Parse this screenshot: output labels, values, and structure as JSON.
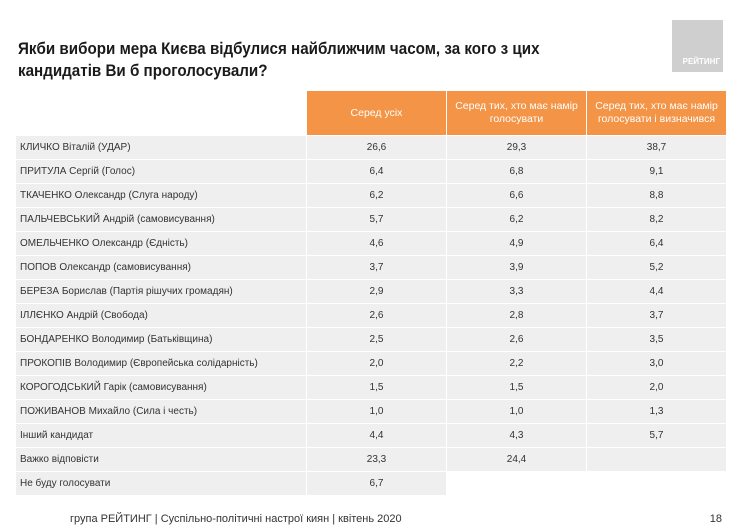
{
  "title": "Якби вибори мера Києва відбулися найближчим часом, за кого з цих кандидатів Ви б проголосували?",
  "logo_text": "РЕЙТИНГ",
  "colors": {
    "header": "#f39447",
    "row": "#efefef",
    "logo": "#cfcfcf"
  },
  "columns": [
    "Серед усіх",
    "Серед тих, хто має намір голосувати",
    "Серед тих, хто має намір голосувати і визначився"
  ],
  "rows": [
    {
      "label": "КЛИЧКО Віталій (УДАР)",
      "values": [
        "26,6",
        "29,3",
        "38,7"
      ]
    },
    {
      "label": "ПРИТУЛА Сергій (Голос)",
      "values": [
        "6,4",
        "6,8",
        "9,1"
      ]
    },
    {
      "label": "ТКАЧЕНКО Олександр (Слуга народу)",
      "values": [
        "6,2",
        "6,6",
        "8,8"
      ]
    },
    {
      "label": "ПАЛЬЧЕВСЬКИЙ Андрій (самовисування)",
      "values": [
        "5,7",
        "6,2",
        "8,2"
      ]
    },
    {
      "label": "ОМЕЛЬЧЕНКО Олександр (Єдність)",
      "values": [
        "4,6",
        "4,9",
        "6,4"
      ]
    },
    {
      "label": "ПОПОВ Олександр (самовисування)",
      "values": [
        "3,7",
        "3,9",
        "5,2"
      ]
    },
    {
      "label": "БЕРЕЗА Борислав (Партія рішучих громадян)",
      "values": [
        "2,9",
        "3,3",
        "4,4"
      ]
    },
    {
      "label": "ІЛЛЄНКО Андрій (Свобода)",
      "values": [
        "2,6",
        "2,8",
        "3,7"
      ]
    },
    {
      "label": "БОНДАРЕНКО Володимир (Батьківщина)",
      "values": [
        "2,5",
        "2,6",
        "3,5"
      ]
    },
    {
      "label": "ПРОКОПІВ Володимир (Європейська солідарність)",
      "values": [
        "2,0",
        "2,2",
        "3,0"
      ]
    },
    {
      "label": "КОРОГОДСЬКИЙ Гарік (самовисування)",
      "values": [
        "1,5",
        "1,5",
        "2,0"
      ]
    },
    {
      "label": "ПОЖИВАНОВ Михайло (Сила і честь)",
      "values": [
        "1,0",
        "1,0",
        "1,3"
      ]
    },
    {
      "label": "Інший кандидат",
      "values": [
        "4,4",
        "4,3",
        "5,7"
      ]
    },
    {
      "label": "Важко відповісти",
      "values": [
        "23,3",
        "24,4",
        null
      ]
    },
    {
      "label": "Не буду голосувати",
      "values": [
        "6,7",
        null,
        null
      ]
    }
  ],
  "footer": "група РЕЙТИНГ | Суспільно-політичні настрої киян | квітень 2020",
  "page_number": "18"
}
